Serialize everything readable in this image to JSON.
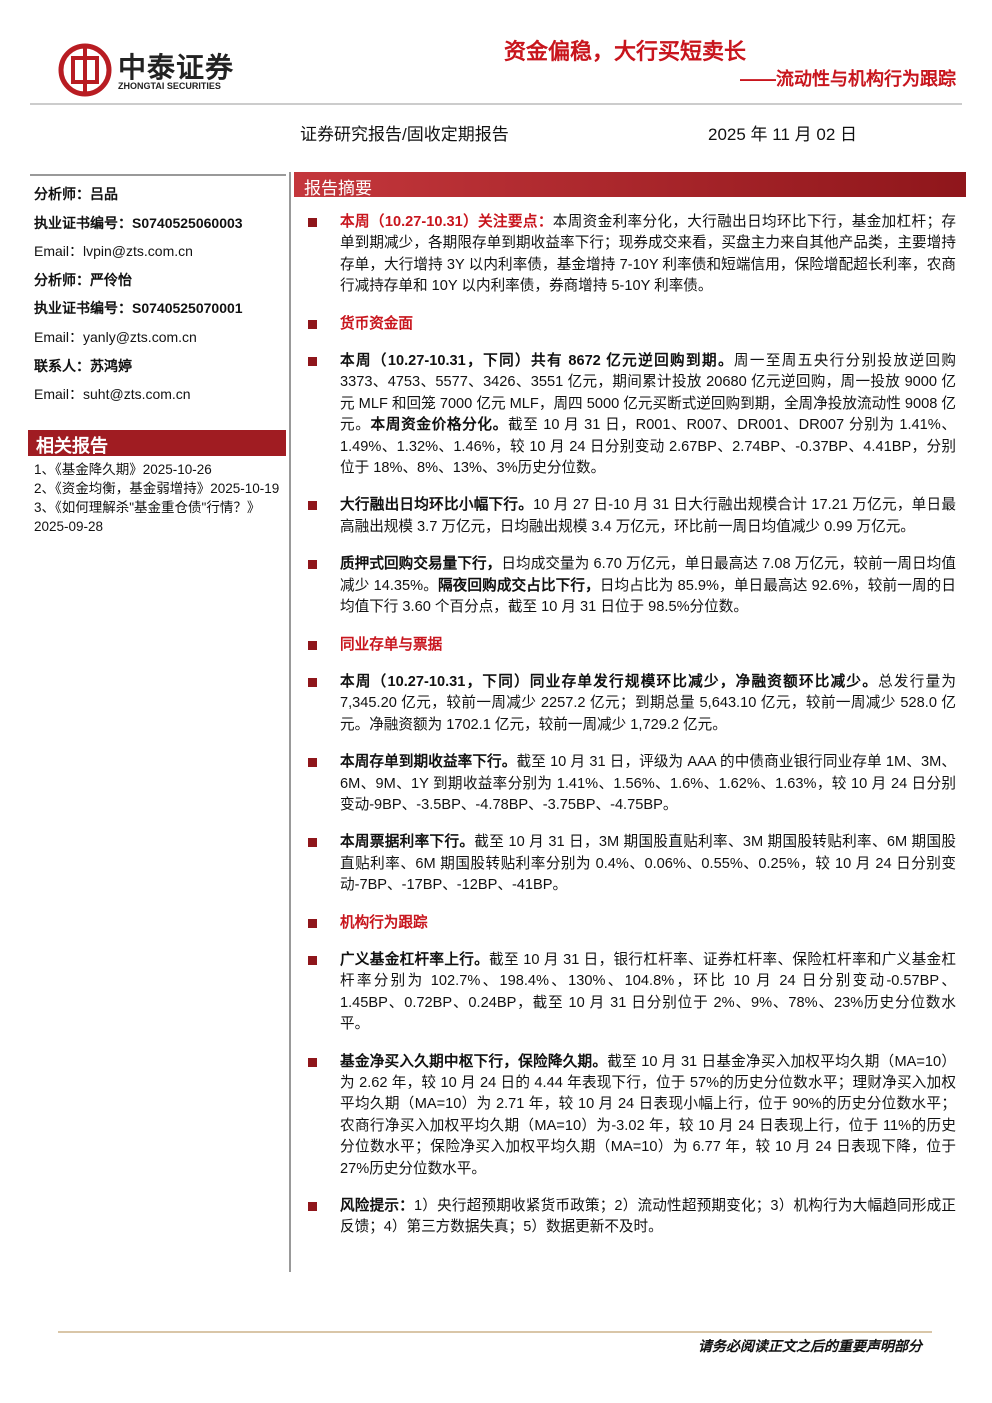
{
  "header": {
    "logo_cn": "中泰证券",
    "logo_en": "ZHONGTAI SECURITIES",
    "title": "资金偏稳，大行买短卖长",
    "subtitle": "——流动性与机构行为跟踪",
    "report_type": "证券研究报告/固收定期报告",
    "date": "2025 年 11 月 02 日"
  },
  "sidebar": {
    "contacts": [
      {
        "label": "分析师：",
        "value": "吕品"
      },
      {
        "label": "执业证书编号：",
        "value": "S0740525060003"
      },
      {
        "label": "Email：",
        "value": "lvpin@zts.com.cn"
      },
      {
        "label": "分析师：",
        "value": "严伶怡"
      },
      {
        "label": "执业证书编号：",
        "value": "S0740525070001"
      },
      {
        "label": "Email：",
        "value": "yanly@zts.com.cn"
      },
      {
        "label": "联系人：",
        "value": "苏鸿婷"
      },
      {
        "label": "Email：",
        "value": "suht@zts.com.cn"
      }
    ],
    "related_title": "相关报告",
    "related": [
      "1、《基金降久期》2025-10-26",
      "2、《资金均衡，基金弱增持》2025-10-19",
      "3、《如何理解杀\"基金重仓债\"行情？》2025-09-28"
    ]
  },
  "summary": {
    "title": "报告摘要",
    "blocks": [
      {
        "runs": [
          {
            "red": "本周（10.27-10.31）关注要点："
          },
          {
            "text": "本周资金利率分化，大行融出日均环比下行，基金加杠杆；存单到期减少，各期限存单到期收益率下行；现券成交来看，买盘主力来自其他产品类，主要增持存单，大行增持 3Y 以内利率债，基金增持 7-10Y 利率债和短端信用，保险增配超长利率，农商行减持存单和 10Y 以内利率债，券商增持 5-10Y 利率债。"
          }
        ]
      },
      {
        "heading": "货币资金面"
      },
      {
        "runs": [
          {
            "bold": "本周（10.27-10.31，下同）共有 8672 亿元逆回购到期。"
          },
          {
            "text": "周一至周五央行分别投放逆回购 3373、4753、5577、3426、3551 亿元，期间累计投放 20680 亿元逆回购，周一投放 9000 亿元 MLF 和回笼 7000 亿元 MLF，周四 5000 亿元买断式逆回购到期，全周净投放流动性 9008 亿元。"
          },
          {
            "bold": "本周资金价格分化。"
          },
          {
            "text": "截至 10 月 31 日，R001、R007、DR001、DR007 分别为 1.41%、1.49%、1.32%、1.46%，较 10 月 24 日分别变动 2.67BP、2.74BP、-0.37BP、4.41BP，分别位于 18%、8%、13%、3%历史分位数。"
          }
        ]
      },
      {
        "runs": [
          {
            "bold": "大行融出日均环比小幅下行。"
          },
          {
            "text": "10 月 27 日-10 月 31 日大行融出规模合计 17.21 万亿元，单日最高融出规模 3.7 万亿元，日均融出规模 3.4 万亿元，环比前一周日均值减少 0.99 万亿元。"
          }
        ]
      },
      {
        "runs": [
          {
            "bold": "质押式回购交易量下行，"
          },
          {
            "text": "日均成交量为 6.70 万亿元，单日最高达 7.08 万亿元，较前一周日均值减少 14.35%。"
          },
          {
            "bold": "隔夜回购成交占比下行，"
          },
          {
            "text": "日均占比为 85.9%，单日最高达 92.6%，较前一周的日均值下行 3.60 个百分点，截至 10 月 31 日位于 98.5%分位数。"
          }
        ]
      },
      {
        "heading": "同业存单与票据"
      },
      {
        "runs": [
          {
            "bold": "本周（10.27-10.31，下同）同业存单发行规模环比减少，净融资额环比减少。"
          },
          {
            "text": "总发行量为 7,345.20 亿元，较前一周减少 2257.2 亿元；到期总量 5,643.10 亿元，较前一周减少 528.0 亿元。净融资额为 1702.1 亿元，较前一周减少 1,729.2 亿元。"
          }
        ]
      },
      {
        "runs": [
          {
            "bold": "本周存单到期收益率下行。"
          },
          {
            "text": "截至 10 月 31 日，评级为 AAA 的中债商业银行同业存单 1M、3M、6M、9M、1Y 到期收益率分别为 1.41%、1.56%、1.6%、1.62%、1.63%，较 10 月 24 日分别变动-9BP、-3.5BP、-4.78BP、-3.75BP、-4.75BP。"
          }
        ]
      },
      {
        "runs": [
          {
            "bold": "本周票据利率下行。"
          },
          {
            "text": "截至 10 月 31 日，3M 期国股直贴利率、3M 期国股转贴利率、6M 期国股直贴利率、6M 期国股转贴利率分别为 0.4%、0.06%、0.55%、0.25%，较 10 月 24 日分别变动-7BP、-17BP、-12BP、-41BP。"
          }
        ]
      },
      {
        "heading": "机构行为跟踪"
      },
      {
        "runs": [
          {
            "bold": "广义基金杠杆率上行。"
          },
          {
            "text": "截至 10 月 31 日，银行杠杆率、证券杠杆率、保险杠杆率和广义基金杠杆率分别为 102.7%、198.4%、130%、104.8%，环比 10 月 24 日分别变动-0.57BP、1.45BP、0.72BP、0.24BP，截至 10 月 31 日分别位于 2%、9%、78%、23%历史分位数水平。"
          }
        ]
      },
      {
        "runs": [
          {
            "bold": "基金净买入久期中枢下行，保险降久期。"
          },
          {
            "text": "截至 10 月 31 日基金净买入加权平均久期（MA=10）为 2.62 年，较 10 月 24 日的 4.44 年表现下行，位于 57%的历史分位数水平；理财净买入加权平均久期（MA=10）为 2.71 年，较 10 月 24 日表现小幅上行，位于 90%的历史分位数水平；农商行净买入加权平均久期（MA=10）为-3.02 年，较 10 月 24 日表现上行，位于 11%的历史分位数水平；保险净买入加权平均久期（MA=10）为 6.77 年，较 10 月 24 日表现下降，位于 27%历史分位数水平。"
          }
        ]
      },
      {
        "runs": [
          {
            "bold": "风险提示："
          },
          {
            "text": "1）央行超预期收紧货币政策；2）流动性超预期变化；3）机构行为大幅趋同形成正反馈；4）第三方数据失真；5）数据更新不及时。"
          }
        ]
      }
    ]
  },
  "footer": {
    "notice": "请务必阅读正文之后的重要声明部分"
  }
}
